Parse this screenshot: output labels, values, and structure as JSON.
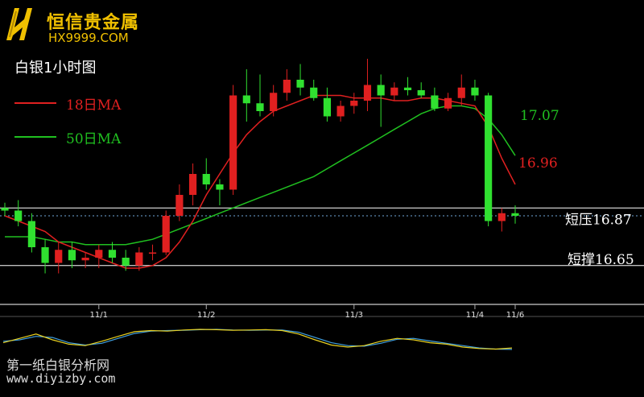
{
  "header": {
    "brand_name": "恒信贵金属",
    "brand_url": "HX9999.COM",
    "chart_title": "白银1小时图"
  },
  "legend": [
    {
      "label": "18日MA",
      "color": "#e02020"
    },
    {
      "label": "50日MA",
      "color": "#20c020"
    }
  ],
  "levels": {
    "resistance_label": "短压16.87",
    "support_label": "短撑16.65",
    "ma50_end_label": "17.07",
    "ma18_end_label": "16.96"
  },
  "watermark": {
    "line1": "第一纸白银分析网",
    "line2": "www.diyizby.com"
  },
  "colors": {
    "background": "#000000",
    "up_candle": "#e02020",
    "down_candle": "#30e030",
    "ma18": "#e02020",
    "ma50": "#20c020",
    "level_line": "#ffffff",
    "dotted_line": "#6fa8d8",
    "brand": "#f0c000",
    "oscillator_a": "#e8d020",
    "oscillator_b": "#40a0e0"
  },
  "chart_data": {
    "type": "candlestick",
    "x_tick_labels": [
      "11/1",
      "11/2",
      "11/3",
      "11/4",
      "11/6"
    ],
    "ylim": [
      16.52,
      17.48
    ],
    "horizontal_levels": [
      {
        "label": "短压16.87",
        "value": 16.87,
        "style": "solid"
      },
      {
        "label": "短撑16.65",
        "value": 16.65,
        "style": "solid"
      },
      {
        "value": 16.84,
        "style": "dotted"
      }
    ],
    "series_names": [
      "18日MA",
      "50日MA"
    ],
    "ma18": [
      16.84,
      16.82,
      16.8,
      16.78,
      16.74,
      16.72,
      16.7,
      16.68,
      16.66,
      16.64,
      16.64,
      16.65,
      16.68,
      16.74,
      16.82,
      16.92,
      17.0,
      17.08,
      17.15,
      17.2,
      17.24,
      17.26,
      17.28,
      17.3,
      17.3,
      17.3,
      17.29,
      17.29,
      17.29,
      17.28,
      17.28,
      17.29,
      17.29,
      17.28,
      17.27,
      17.26,
      17.18,
      17.06,
      16.96
    ],
    "ma50": [
      16.76,
      16.76,
      16.76,
      16.75,
      16.74,
      16.74,
      16.73,
      16.73,
      16.73,
      16.73,
      16.74,
      16.75,
      16.77,
      16.79,
      16.81,
      16.83,
      16.85,
      16.87,
      16.89,
      16.91,
      16.93,
      16.95,
      16.97,
      16.99,
      17.02,
      17.05,
      17.08,
      17.11,
      17.14,
      17.17,
      17.2,
      17.23,
      17.25,
      17.26,
      17.26,
      17.25,
      17.21,
      17.15,
      17.07
    ],
    "candles": [
      {
        "o": 16.87,
        "h": 16.89,
        "l": 16.84,
        "c": 16.86
      },
      {
        "o": 16.86,
        "h": 16.9,
        "l": 16.8,
        "c": 16.82
      },
      {
        "o": 16.82,
        "h": 16.85,
        "l": 16.7,
        "c": 16.72
      },
      {
        "o": 16.72,
        "h": 16.75,
        "l": 16.62,
        "c": 16.66
      },
      {
        "o": 16.66,
        "h": 16.74,
        "l": 16.62,
        "c": 16.71
      },
      {
        "o": 16.71,
        "h": 16.74,
        "l": 16.64,
        "c": 16.67
      },
      {
        "o": 16.67,
        "h": 16.7,
        "l": 16.64,
        "c": 16.68
      },
      {
        "o": 16.68,
        "h": 16.73,
        "l": 16.64,
        "c": 16.71
      },
      {
        "o": 16.71,
        "h": 16.74,
        "l": 16.66,
        "c": 16.68
      },
      {
        "o": 16.68,
        "h": 16.71,
        "l": 16.63,
        "c": 16.65
      },
      {
        "o": 16.65,
        "h": 16.72,
        "l": 16.63,
        "c": 16.7
      },
      {
        "o": 16.7,
        "h": 16.73,
        "l": 16.67,
        "c": 16.7
      },
      {
        "o": 16.7,
        "h": 16.86,
        "l": 16.69,
        "c": 16.84
      },
      {
        "o": 16.84,
        "h": 16.96,
        "l": 16.82,
        "c": 16.92
      },
      {
        "o": 16.92,
        "h": 17.04,
        "l": 16.88,
        "c": 17.0
      },
      {
        "o": 17.0,
        "h": 17.06,
        "l": 16.94,
        "c": 16.96
      },
      {
        "o": 16.96,
        "h": 16.98,
        "l": 16.88,
        "c": 16.94
      },
      {
        "o": 16.94,
        "h": 17.34,
        "l": 16.92,
        "c": 17.3
      },
      {
        "o": 17.3,
        "h": 17.4,
        "l": 17.2,
        "c": 17.27
      },
      {
        "o": 17.27,
        "h": 17.38,
        "l": 17.22,
        "c": 17.24
      },
      {
        "o": 17.24,
        "h": 17.34,
        "l": 17.22,
        "c": 17.31
      },
      {
        "o": 17.31,
        "h": 17.4,
        "l": 17.28,
        "c": 17.36
      },
      {
        "o": 17.36,
        "h": 17.42,
        "l": 17.3,
        "c": 17.33
      },
      {
        "o": 17.33,
        "h": 17.36,
        "l": 17.28,
        "c": 17.29
      },
      {
        "o": 17.29,
        "h": 17.33,
        "l": 17.2,
        "c": 17.22
      },
      {
        "o": 17.22,
        "h": 17.28,
        "l": 17.2,
        "c": 17.26
      },
      {
        "o": 17.26,
        "h": 17.31,
        "l": 17.23,
        "c": 17.28
      },
      {
        "o": 17.28,
        "h": 17.44,
        "l": 17.24,
        "c": 17.34
      },
      {
        "o": 17.34,
        "h": 17.38,
        "l": 17.18,
        "c": 17.3
      },
      {
        "o": 17.3,
        "h": 17.35,
        "l": 17.28,
        "c": 17.33
      },
      {
        "o": 17.33,
        "h": 17.37,
        "l": 17.3,
        "c": 17.32
      },
      {
        "o": 17.32,
        "h": 17.35,
        "l": 17.29,
        "c": 17.3
      },
      {
        "o": 17.3,
        "h": 17.33,
        "l": 17.24,
        "c": 17.25
      },
      {
        "o": 17.25,
        "h": 17.31,
        "l": 17.24,
        "c": 17.29
      },
      {
        "o": 17.29,
        "h": 17.38,
        "l": 17.26,
        "c": 17.33
      },
      {
        "o": 17.33,
        "h": 17.36,
        "l": 17.28,
        "c": 17.3
      },
      {
        "o": 17.3,
        "h": 17.31,
        "l": 16.8,
        "c": 16.82
      },
      {
        "o": 16.82,
        "h": 16.87,
        "l": 16.78,
        "c": 16.85
      },
      {
        "o": 16.85,
        "h": 16.88,
        "l": 16.81,
        "c": 16.84
      }
    ]
  }
}
